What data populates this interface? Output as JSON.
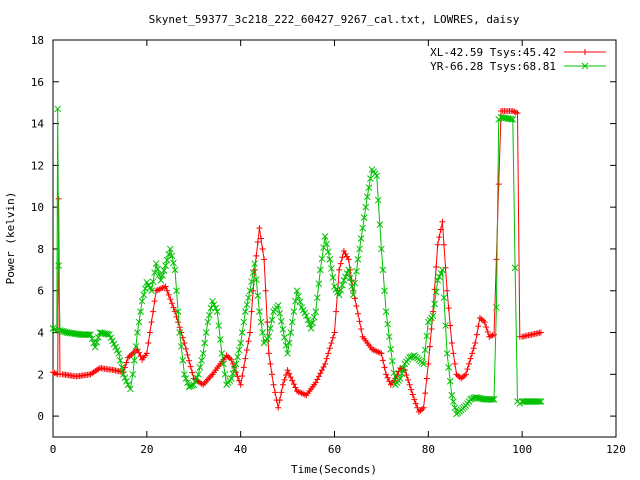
{
  "chart_data": {
    "type": "line",
    "title": "Skynet_59377_3c218_222_60427_9267_cal.txt, LOWRES, daisy",
    "xlabel": "Time(Seconds)",
    "ylabel": "Power (kelvin)",
    "xlim": [
      0,
      120
    ],
    "ylim": [
      -1,
      18
    ],
    "xticks": [
      0,
      20,
      40,
      60,
      80,
      100,
      120
    ],
    "yticks": [
      0,
      2,
      4,
      6,
      8,
      10,
      12,
      14,
      16,
      18
    ],
    "grid": false,
    "legend_position": "top-right",
    "series": [
      {
        "name": "XL-42.59 Tsys:45.42",
        "color": "#ff0000",
        "marker": "plus",
        "x": [
          0,
          1,
          1.2,
          1.5,
          2,
          5,
          8,
          10,
          13,
          15,
          16,
          17,
          18,
          19,
          20,
          21,
          22,
          24,
          26,
          28,
          30,
          32,
          34,
          36,
          37,
          38,
          40,
          42,
          43,
          44,
          45,
          46,
          47,
          48,
          49,
          50,
          52,
          54,
          56,
          58,
          60,
          61,
          62,
          63,
          64,
          66,
          68,
          70,
          71,
          72,
          73,
          74,
          75,
          76,
          77,
          78,
          79,
          80,
          81,
          82,
          83,
          84,
          85,
          86,
          87,
          88,
          90,
          91,
          92,
          93,
          94,
          94.5,
          95,
          95.5,
          98,
          99,
          99.5,
          100,
          104
        ],
        "y": [
          2.1,
          2.0,
          10.4,
          2.0,
          2.0,
          1.9,
          2.0,
          2.3,
          2.2,
          2.1,
          2.8,
          3.0,
          3.2,
          2.7,
          3.0,
          4.5,
          6.0,
          6.2,
          5.0,
          3.5,
          1.8,
          1.5,
          2.0,
          2.6,
          2.9,
          2.7,
          1.5,
          4.0,
          7.0,
          9.0,
          7.5,
          3.0,
          1.5,
          0.4,
          1.5,
          2.2,
          1.2,
          1.0,
          1.6,
          2.5,
          4.0,
          7.0,
          7.9,
          7.5,
          6.0,
          3.8,
          3.2,
          3.0,
          2.0,
          1.5,
          1.8,
          2.3,
          2.2,
          1.5,
          0.8,
          0.2,
          0.4,
          2.5,
          5.0,
          8.2,
          9.3,
          6.0,
          3.5,
          2.0,
          1.8,
          2.0,
          3.5,
          4.7,
          4.5,
          3.8,
          3.9,
          7.5,
          11.1,
          14.6,
          14.6,
          14.5,
          3.8,
          3.8,
          4.0
        ]
      },
      {
        "name": "YR-66.28 Tsys:68.81",
        "color": "#00c000",
        "marker": "x",
        "x": [
          0,
          0.8,
          1.0,
          1.2,
          1.5,
          3,
          6,
          8,
          9,
          10,
          12,
          14,
          15,
          16,
          16.5,
          17,
          18,
          19,
          20,
          21,
          22,
          23,
          24,
          25,
          26,
          27,
          28,
          29,
          30,
          31,
          32,
          33,
          34,
          35,
          36,
          37,
          38,
          39,
          40,
          41,
          42,
          43,
          44,
          45,
          46,
          47,
          48,
          50,
          51,
          52,
          53,
          54,
          55,
          56,
          57,
          58,
          59,
          60,
          61,
          62,
          63,
          64,
          65,
          66,
          67,
          68,
          69,
          70,
          71,
          72,
          73,
          74,
          75,
          76,
          77,
          78,
          79,
          80,
          81,
          82,
          83,
          84,
          85,
          86,
          87,
          88,
          89,
          90,
          92,
          94,
          94.5,
          95,
          95.5,
          98,
          98.5,
          99,
          99.5,
          100,
          104
        ],
        "y": [
          4.2,
          4.1,
          14.7,
          7.2,
          4.1,
          4.0,
          3.9,
          3.9,
          3.3,
          4.0,
          3.9,
          3.0,
          2.0,
          1.5,
          1.3,
          2.0,
          4.0,
          5.5,
          6.4,
          6.0,
          7.3,
          6.5,
          7.2,
          8.0,
          7.0,
          4.0,
          2.0,
          1.4,
          1.5,
          2.0,
          3.0,
          4.5,
          5.5,
          5.0,
          3.0,
          1.5,
          1.8,
          2.5,
          3.5,
          5.0,
          6.0,
          7.3,
          5.0,
          3.5,
          3.8,
          5.0,
          5.3,
          3.0,
          4.5,
          6.0,
          5.2,
          4.8,
          4.2,
          5.0,
          7.0,
          8.6,
          7.5,
          6.2,
          5.8,
          6.5,
          7.0,
          5.8,
          7.5,
          9.0,
          10.5,
          11.8,
          11.5,
          8.0,
          5.0,
          3.2,
          1.5,
          1.8,
          2.5,
          2.8,
          2.9,
          2.7,
          2.5,
          4.5,
          4.8,
          6.5,
          7.0,
          3.0,
          1.0,
          0.1,
          0.3,
          0.5,
          0.8,
          0.9,
          0.8,
          0.8,
          5.2,
          14.2,
          14.3,
          14.2,
          7.1,
          0.7,
          0.6,
          0.7,
          0.7
        ]
      }
    ]
  }
}
